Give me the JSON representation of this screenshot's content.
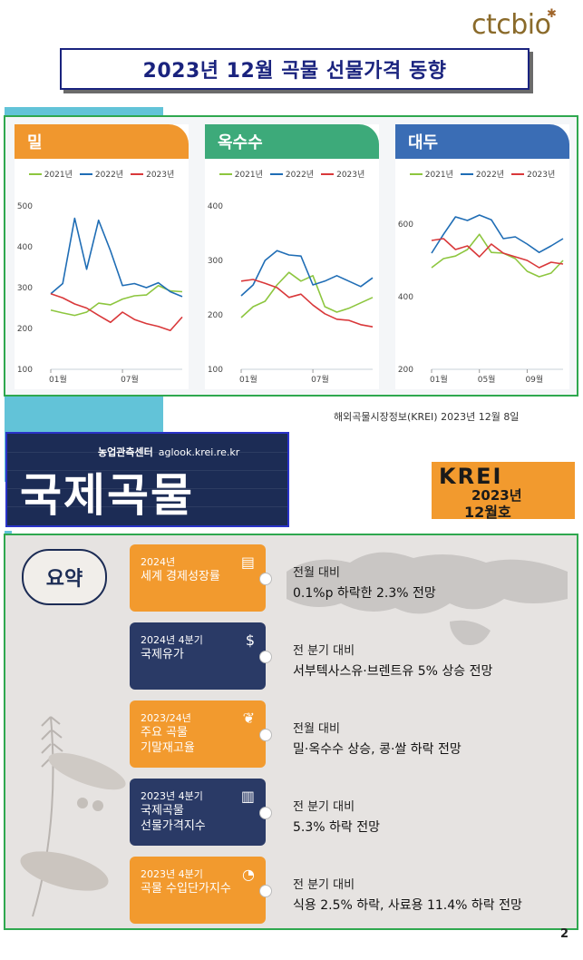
{
  "logo": {
    "text": "ctcbio"
  },
  "title": "2023년 12월 곡물 선물가격 동향",
  "colors": {
    "y2021": "#8dc63f",
    "y2022": "#1f6db5",
    "y2023": "#d9383a",
    "wheat": "#f0972e",
    "corn": "#3daa7a",
    "soy": "#3a6db5"
  },
  "charts": [
    {
      "name": "밀",
      "legend": [
        "2021년",
        "2022년",
        "2023년"
      ],
      "yticks": [
        100,
        200,
        300,
        400,
        500
      ],
      "ylim": [
        100,
        500
      ],
      "xticks": [
        "01월",
        "07월"
      ],
      "chart_data": {
        "type": "line",
        "x_months": [
          1,
          2,
          3,
          4,
          5,
          6,
          7,
          8,
          9,
          10,
          11,
          12
        ],
        "series": [
          {
            "name": "2021년",
            "values": [
              245,
              238,
              232,
              240,
              262,
              258,
              272,
              280,
              282,
              305,
              292,
              290
            ]
          },
          {
            "name": "2022년",
            "values": [
              285,
              310,
              470,
              345,
              465,
              390,
              305,
              310,
              300,
              312,
              290,
              278
            ]
          },
          {
            "name": "2023년",
            "values": [
              285,
              275,
              260,
              250,
              232,
              215,
              240,
              222,
              212,
              205,
              195,
              228
            ]
          }
        ]
      }
    },
    {
      "name": "옥수수",
      "legend": [
        "2021년",
        "2022년",
        "2023년"
      ],
      "yticks": [
        100,
        200,
        300,
        400
      ],
      "ylim": [
        100,
        400
      ],
      "xticks": [
        "01월",
        "07월"
      ],
      "chart_data": {
        "type": "line",
        "x_months": [
          1,
          2,
          3,
          4,
          5,
          6,
          7,
          8,
          9,
          10,
          11,
          12
        ],
        "series": [
          {
            "name": "2021년",
            "values": [
              195,
              215,
              225,
              255,
              278,
              262,
              272,
              215,
              205,
              212,
              222,
              232
            ]
          },
          {
            "name": "2022년",
            "values": [
              235,
              255,
              300,
              318,
              310,
              308,
              255,
              262,
              272,
              262,
              252,
              268
            ]
          },
          {
            "name": "2023년",
            "values": [
              262,
              265,
              258,
              250,
              232,
              238,
              218,
              202,
              192,
              190,
              182,
              178
            ]
          }
        ]
      }
    },
    {
      "name": "대두",
      "legend": [
        "2021년",
        "2022년",
        "2023년"
      ],
      "yticks": [
        200,
        400,
        600
      ],
      "ylim": [
        200,
        650
      ],
      "xticks": [
        "01월",
        "05월",
        "09월"
      ],
      "chart_data": {
        "type": "line",
        "x_months": [
          1,
          2,
          3,
          4,
          5,
          6,
          7,
          8,
          9,
          10,
          11,
          12
        ],
        "series": [
          {
            "name": "2021년",
            "values": [
              480,
              505,
              512,
              530,
              572,
              522,
              520,
              505,
              470,
              455,
              465,
              500
            ]
          },
          {
            "name": "2022년",
            "values": [
              520,
              572,
              620,
              610,
              625,
              612,
              560,
              565,
              545,
              522,
              540,
              560
            ]
          },
          {
            "name": "2023년",
            "values": [
              555,
              560,
              530,
              540,
              510,
              545,
              520,
              510,
              500,
              480,
              495,
              490
            ]
          }
        ]
      }
    }
  ],
  "source": "해외곡물시장정보(KREI)  2023년 12월 8일",
  "banner": {
    "sub1": "농업관측센터",
    "sub2": "aglook.krei.re.kr",
    "main": "국제곡물"
  },
  "krei": {
    "logo": "KREI",
    "year": "2023년",
    "issue": "12월호"
  },
  "summary": {
    "label": "요약",
    "items": [
      {
        "l1": "2024년",
        "l2a": "세계 경제성장률",
        "l2b": "",
        "color": "orange",
        "icon": "document-chart-icon",
        "d1": "전월 대비",
        "d2": " 0.1%p 하락한 2.3% 전망"
      },
      {
        "l1": "2024년 4분기",
        "l2a": "국제유가",
        "l2b": "",
        "color": "navy",
        "icon": "oil-price-icon",
        "d1": "전 분기 대비",
        "d2": "서부텍사스유·브렌트유 5% 상승 전망"
      },
      {
        "l1": "2023/24년",
        "l2a": "주요 곡물",
        "l2b": "기말재고율",
        "color": "orange",
        "icon": "beans-icon",
        "d1": "전월 대비",
        "d2": "밀·옥수수 상승, 콩·쌀 하락 전망"
      },
      {
        "l1": "2023년 4분기",
        "l2a": "국제곡물",
        "l2b": "선물가격지수",
        "color": "navy",
        "icon": "bar-chart-icon",
        "d1": "전 분기 대비",
        "d2": "5.3% 하락 전망"
      },
      {
        "l1": "2023년 4분기",
        "l2a": "곡물 수입단가지수",
        "l2b": "",
        "color": "orange",
        "icon": "pie-chart-icon",
        "d1": "전 분기 대비",
        "d2": "식용 2.5% 하락, 사료용 11.4% 하락 전망"
      }
    ]
  },
  "page_number": "2"
}
